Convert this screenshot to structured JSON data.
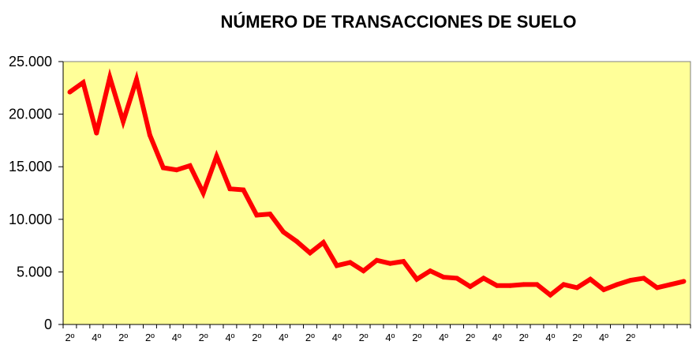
{
  "chart_data": {
    "type": "line",
    "title": "NÚMERO DE TRANSACCIONES DE SUELO",
    "xlabel": "",
    "ylabel": "",
    "ylim": [
      0,
      25000
    ],
    "yticks": [
      0,
      5000,
      10000,
      15000,
      20000,
      25000
    ],
    "ytick_labels": [
      "0",
      "5.000",
      "10.000",
      "15.000",
      "20.000",
      "25.000"
    ],
    "grid": false,
    "legend": "none",
    "colors": {
      "plot_background": "#FFFF99",
      "line": "#FF0000",
      "axis": "#000000"
    },
    "xtick_labels": [
      "2º",
      "4º",
      "2º",
      "2º",
      "4º",
      "2º",
      "4º",
      "2º",
      "4º",
      "2º",
      "4º",
      "2º",
      "4º",
      "2º",
      "4º",
      "2º",
      "4º",
      "2º",
      "4º",
      "2º",
      "4º",
      "2º"
    ],
    "series": [
      {
        "values": [
          22100,
          23000,
          18200,
          23500,
          19300,
          23300,
          18000,
          14900,
          14700,
          15100,
          12500,
          16000,
          12900,
          12800,
          10400,
          10500,
          8800,
          7900,
          6800,
          7800,
          5600,
          5900,
          5100,
          6100,
          5800,
          6000,
          4300,
          5100,
          4500,
          4400,
          3600,
          4400,
          3700,
          3700,
          3800,
          3800,
          2800,
          3800,
          3500,
          4300,
          3300,
          3800,
          4200,
          4400,
          3500,
          3800,
          4100
        ]
      }
    ]
  }
}
